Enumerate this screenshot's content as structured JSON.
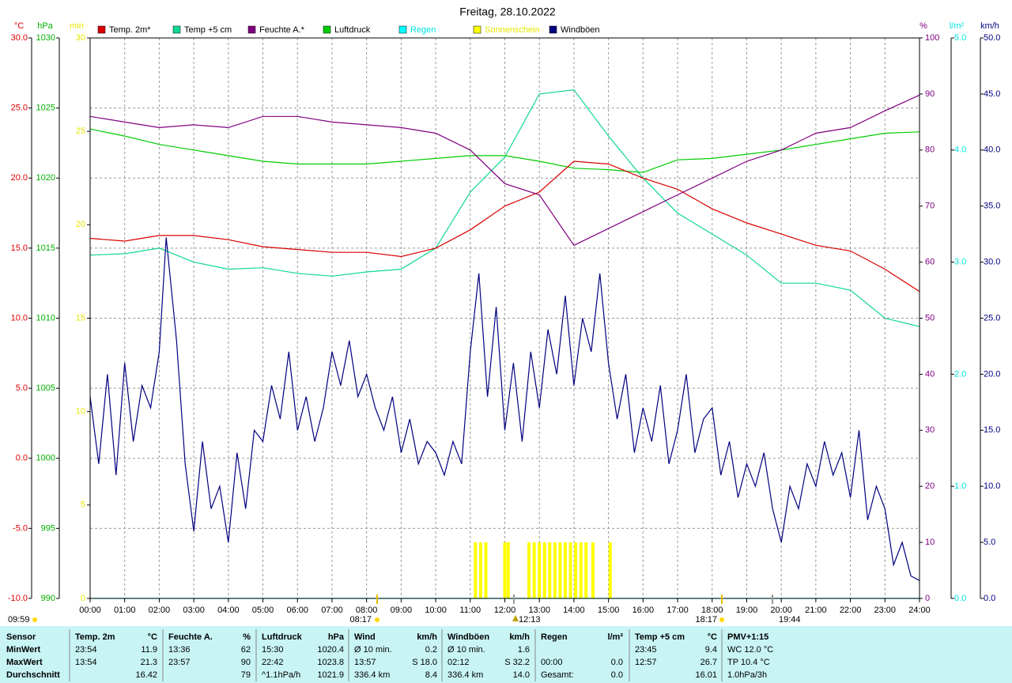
{
  "chart_data": {
    "type": "line",
    "title": "Freitag, 28.10.2022",
    "xlim": [
      0,
      24
    ],
    "xticks": [
      {
        "value": 0,
        "label": "00:00"
      },
      {
        "value": 1,
        "label": "01:00"
      },
      {
        "value": 2,
        "label": "02:00"
      },
      {
        "value": 3,
        "label": "03:00"
      },
      {
        "value": 4,
        "label": "04:00"
      },
      {
        "value": 5,
        "label": "05:00"
      },
      {
        "value": 6,
        "label": "06:00"
      },
      {
        "value": 7,
        "label": "07:00"
      },
      {
        "value": 8,
        "label": "08:00"
      },
      {
        "value": 9,
        "label": "09:00"
      },
      {
        "value": 10,
        "label": "10:00"
      },
      {
        "value": 11,
        "label": "11:00"
      },
      {
        "value": 12,
        "label": "12:00"
      },
      {
        "value": 13,
        "label": "13:00"
      },
      {
        "value": 14,
        "label": "14:00"
      },
      {
        "value": 15,
        "label": "15:00"
      },
      {
        "value": 16,
        "label": "16:00"
      },
      {
        "value": 17,
        "label": "17:00"
      },
      {
        "value": 18,
        "label": "18:00"
      },
      {
        "value": 19,
        "label": "19:00"
      },
      {
        "value": 20,
        "label": "20:00"
      },
      {
        "value": 21,
        "label": "21:00"
      },
      {
        "value": 22,
        "label": "22:00"
      },
      {
        "value": 23,
        "label": "23:00"
      },
      {
        "value": 24,
        "label": "24:00"
      }
    ],
    "grid": true,
    "axes": [
      {
        "unit": "°C",
        "color": "#e00000",
        "lim": [
          -10,
          30
        ],
        "ticks": [
          {
            "value": 30,
            "label": "30.0"
          },
          {
            "value": 25,
            "label": "25.0"
          },
          {
            "value": 20,
            "label": "20.0"
          },
          {
            "value": 15,
            "label": "15.0"
          },
          {
            "value": 10,
            "label": "10.0"
          },
          {
            "value": 5,
            "label": "5.0"
          },
          {
            "value": 0,
            "label": "0.0"
          },
          {
            "value": -5,
            "label": "-5.0"
          },
          {
            "value": -10,
            "label": "-10.0"
          }
        ]
      },
      {
        "unit": "hPa",
        "color": "#00b000",
        "lim": [
          990,
          1030
        ],
        "ticks": [
          1030,
          1025,
          1020,
          1015,
          1010,
          1005,
          1000,
          995,
          990
        ]
      },
      {
        "unit": "min",
        "color": "#e6e600",
        "lim": [
          0,
          30
        ],
        "ticks": [
          30,
          25,
          20,
          15,
          10,
          5,
          0
        ]
      },
      {
        "unit": "%",
        "color": "#800080",
        "lim": [
          0,
          100
        ],
        "ticks": [
          100,
          90,
          80,
          70,
          60,
          50,
          40,
          30,
          20,
          10,
          0
        ]
      },
      {
        "unit": "l/m²",
        "color": "#00e0e0",
        "lim": [
          0,
          5
        ],
        "ticks": [
          {
            "value": 5,
            "label": "5.0"
          },
          {
            "value": 4,
            "label": "4.0"
          },
          {
            "value": 3,
            "label": "3.0"
          },
          {
            "value": 2,
            "label": "2.0"
          },
          {
            "value": 1,
            "label": "1.0"
          },
          {
            "value": 0,
            "label": "0.0"
          }
        ]
      },
      {
        "unit": "km/h",
        "color": "#000080",
        "lim": [
          0,
          50
        ],
        "ticks": [
          {
            "value": 50,
            "label": "50.0"
          },
          {
            "value": 45,
            "label": "45.0"
          },
          {
            "value": 40,
            "label": "40.0"
          },
          {
            "value": 35,
            "label": "35.0"
          },
          {
            "value": 30,
            "label": "30.0"
          },
          {
            "value": 25,
            "label": "25.0"
          },
          {
            "value": 20,
            "label": "20.0"
          },
          {
            "value": 15,
            "label": "15.0"
          },
          {
            "value": 10,
            "label": "10.0"
          },
          {
            "value": 5,
            "label": "5.0"
          },
          {
            "value": 0,
            "label": "0.0"
          }
        ]
      }
    ],
    "series": [
      {
        "name": "Temp. 2m*",
        "color": "#d80000",
        "label_color": "#000000",
        "axis": 0,
        "mark": "line",
        "x": [
          0,
          1,
          2,
          3,
          4,
          5,
          6,
          7,
          8,
          9,
          10,
          11,
          12,
          13,
          14,
          15,
          16,
          17,
          18,
          19,
          20,
          21,
          22,
          23,
          24
        ],
        "values": [
          15.7,
          15.5,
          15.9,
          15.9,
          15.6,
          15.1,
          14.9,
          14.7,
          14.7,
          14.4,
          15.0,
          16.3,
          18.0,
          19.0,
          21.2,
          21.0,
          20.0,
          19.2,
          17.8,
          16.8,
          16.0,
          15.2,
          14.8,
          13.5,
          11.9
        ]
      },
      {
        "name": "Temp +5 cm",
        "color": "#10d890",
        "label_color": "#000000",
        "axis": 0,
        "mark": "line",
        "x": [
          0,
          1,
          2,
          3,
          4,
          5,
          6,
          7,
          8,
          9,
          10,
          11,
          12,
          13,
          14,
          15,
          16,
          17,
          18,
          19,
          20,
          21,
          22,
          23,
          24
        ],
        "values": [
          14.5,
          14.6,
          15.0,
          14.0,
          13.5,
          13.6,
          13.2,
          13.0,
          13.3,
          13.5,
          15.0,
          19.0,
          21.5,
          26.0,
          26.3,
          23.0,
          20.0,
          17.5,
          16.0,
          14.5,
          12.5,
          12.5,
          12.0,
          10.0,
          9.4
        ]
      },
      {
        "name": "Feuchte A.*",
        "color": "#800080",
        "label_color": "#000000",
        "axis": 3,
        "mark": "line",
        "x": [
          0,
          1,
          2,
          3,
          4,
          5,
          6,
          7,
          8,
          9,
          10,
          11,
          12,
          13,
          14,
          15,
          16,
          17,
          18,
          19,
          20,
          21,
          22,
          23,
          24
        ],
        "values": [
          86,
          85,
          84,
          84.5,
          84,
          86,
          86,
          85,
          84.5,
          84,
          83,
          80,
          74,
          72,
          63,
          66,
          69,
          72,
          75,
          78,
          80,
          83,
          84,
          87,
          89.8
        ]
      },
      {
        "name": "Luftdruck",
        "color": "#00cc00",
        "label_color": "#000000",
        "axis": 1,
        "mark": "line",
        "x": [
          0,
          1,
          2,
          3,
          4,
          5,
          6,
          7,
          8,
          9,
          10,
          11,
          12,
          13,
          14,
          15,
          16,
          17,
          18,
          19,
          20,
          21,
          22,
          23,
          24
        ],
        "values": [
          1023.5,
          1023.0,
          1022.4,
          1022.0,
          1021.6,
          1021.2,
          1021.0,
          1021.0,
          1021.0,
          1021.2,
          1021.4,
          1021.6,
          1021.6,
          1021.2,
          1020.7,
          1020.6,
          1020.4,
          1021.3,
          1021.4,
          1021.7,
          1022.0,
          1022.4,
          1022.8,
          1023.2,
          1023.3
        ]
      },
      {
        "name": "Regen",
        "color": "#00ffff",
        "label_color": "#00e0e0",
        "axis": 4,
        "mark": "line",
        "x": [
          0,
          24
        ],
        "values": [
          0,
          0
        ]
      },
      {
        "name": "Sonnenschein",
        "color": "#ffff00",
        "label_color": "#e6e600",
        "axis": 2,
        "mark": "bar",
        "x": [
          11.15,
          11.3,
          11.45,
          12.0,
          12.1,
          12.7,
          12.85,
          13.0,
          13.15,
          13.3,
          13.45,
          13.6,
          13.75,
          13.9,
          14.05,
          14.2,
          14.35,
          14.55,
          15.05
        ],
        "values": [
          3,
          3,
          3,
          3,
          3,
          3,
          3,
          3,
          3,
          3,
          3,
          3,
          3,
          3,
          3,
          3,
          3,
          3,
          3
        ]
      },
      {
        "name": "Windböen",
        "color": "#000080",
        "label_color": "#000000",
        "axis": 5,
        "mark": "line",
        "x": [
          0,
          0.25,
          0.5,
          0.75,
          1,
          1.25,
          1.5,
          1.75,
          2,
          2.2,
          2.5,
          2.75,
          3,
          3.25,
          3.5,
          3.75,
          4,
          4.25,
          4.5,
          4.75,
          5,
          5.25,
          5.5,
          5.75,
          6,
          6.25,
          6.5,
          6.75,
          7,
          7.25,
          7.5,
          7.75,
          8,
          8.25,
          8.5,
          8.75,
          9,
          9.25,
          9.5,
          9.75,
          10,
          10.25,
          10.5,
          10.75,
          11,
          11.25,
          11.5,
          11.75,
          12,
          12.25,
          12.5,
          12.75,
          13,
          13.25,
          13.5,
          13.75,
          14,
          14.25,
          14.5,
          14.75,
          15,
          15.25,
          15.5,
          15.75,
          16,
          16.25,
          16.5,
          16.75,
          17,
          17.25,
          17.5,
          17.75,
          18,
          18.25,
          18.5,
          18.75,
          19,
          19.25,
          19.5,
          19.75,
          20,
          20.25,
          20.5,
          20.75,
          21,
          21.25,
          21.5,
          21.75,
          22,
          22.25,
          22.5,
          22.75,
          23,
          23.25,
          23.5,
          23.75,
          24
        ],
        "values": [
          18,
          12,
          20,
          11,
          21,
          14,
          19,
          17,
          22,
          32.2,
          23,
          12,
          6,
          14,
          8,
          10,
          5,
          13,
          8,
          15,
          14,
          19,
          16,
          22,
          15,
          18,
          14,
          17,
          22,
          19,
          23,
          18,
          20,
          17,
          15,
          18,
          13,
          16,
          12,
          14,
          13,
          11,
          14,
          12,
          22,
          29,
          18,
          26,
          15,
          21,
          14,
          22,
          17,
          24,
          20,
          27,
          19,
          25,
          22,
          29,
          21,
          16,
          20,
          13,
          17,
          14,
          19,
          12,
          15,
          20,
          13,
          16,
          17,
          11,
          14,
          9,
          12,
          10,
          13,
          8,
          5,
          10,
          8,
          12,
          10,
          14,
          11,
          13,
          9,
          15,
          7,
          10,
          8,
          3,
          5,
          2,
          1.6
        ]
      }
    ],
    "annotations": [
      {
        "label": "09:59"
      },
      {
        "label": "08:17"
      },
      {
        "label": "12:13"
      },
      {
        "label": "18:17"
      },
      {
        "label": "19:44"
      }
    ]
  },
  "table": {
    "columns": [
      {
        "title": "Sensor"
      },
      {
        "title": "Temp. 2m",
        "unit": "°C"
      },
      {
        "title": "Feuchte A.",
        "unit": "%"
      },
      {
        "title": "Luftdruck",
        "unit": "hPa"
      },
      {
        "title": "Wind",
        "unit": "km/h"
      },
      {
        "title": "Windböen",
        "unit": "km/h"
      },
      {
        "title": "Regen",
        "unit": "l/m²"
      },
      {
        "title": "Temp +5 cm",
        "unit": "°C"
      },
      {
        "title": "PMV+1:15"
      }
    ],
    "rows": [
      {
        "label": "MinWert",
        "cells": [
          {
            "l": "23:54",
            "r": "11.9"
          },
          {
            "l": "13:36",
            "r": "62"
          },
          {
            "l": "15:30",
            "r": "1020.4"
          },
          {
            "l": "Ø 10 min.",
            "r": "0.2"
          },
          {
            "l": "Ø 10 min.",
            "r": "1.6"
          },
          {},
          {
            "l": "23:45",
            "r": "9.4"
          },
          {
            "l": "WC 12.0 °C"
          }
        ]
      },
      {
        "label": "MaxWert",
        "cells": [
          {
            "l": "13:54",
            "r": "21.3"
          },
          {
            "l": "23:57",
            "r": "90"
          },
          {
            "l": "22:42",
            "r": "1023.8"
          },
          {
            "l": "13:57",
            "r": "S 18.0"
          },
          {
            "l": "02:12",
            "r": "S 32.2"
          },
          {
            "l": "00:00",
            "r": "0.0"
          },
          {
            "l": "12:57",
            "r": "26.7"
          },
          {
            "l": "TP 10.4 °C"
          }
        ]
      },
      {
        "label": "Durchschnitt",
        "cells": [
          {
            "r": "16.42"
          },
          {
            "r": "79"
          },
          {
            "l": "^1.1hPa/h",
            "r": "1021.9"
          },
          {
            "l": "336.4 km",
            "r": "8.4"
          },
          {
            "l": "336.4 km",
            "r": "14.0"
          },
          {
            "l": "Gesamt:",
            "r": "0.0"
          },
          {
            "r": "16.01"
          },
          {
            "l": "1.0hPa/3h"
          }
        ]
      }
    ]
  }
}
